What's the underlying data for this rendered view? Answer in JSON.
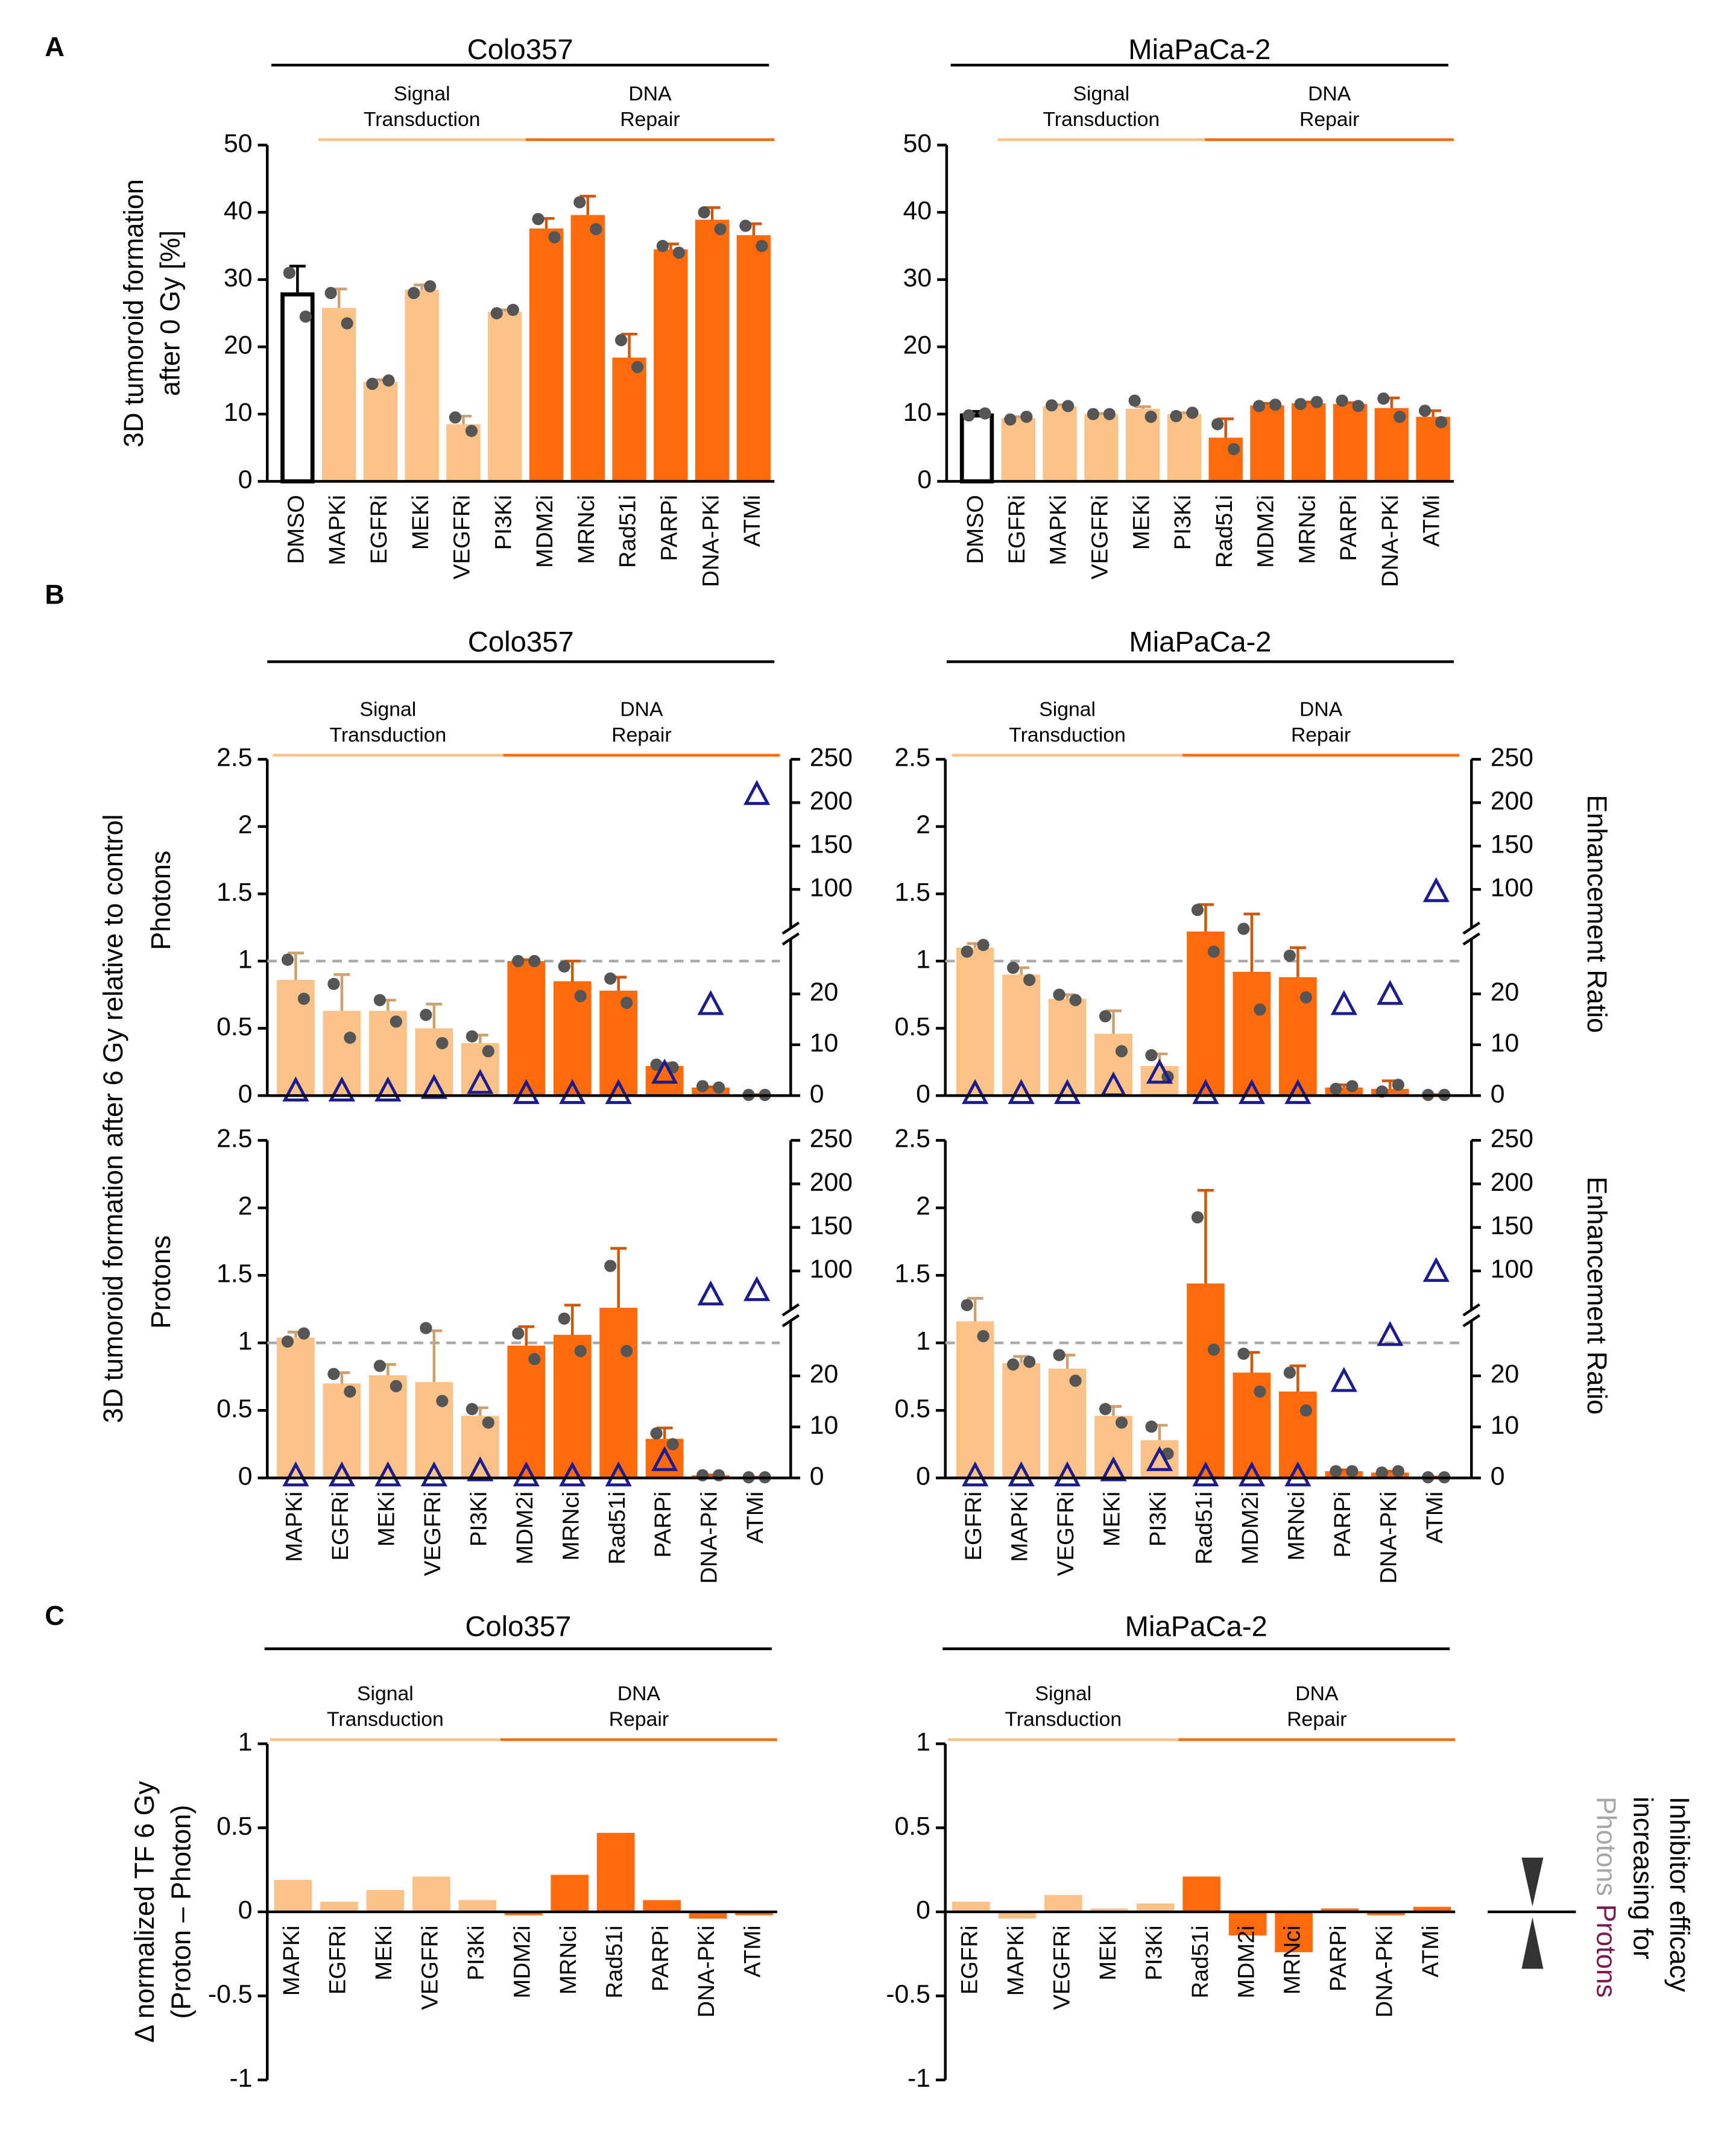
{
  "chart_data": [
    {
      "type": "bar",
      "panel": "A",
      "title": "Colo357",
      "ylabel": [
        "3D tumoroid formation",
        "after 0 Gy [%]"
      ],
      "ylim": [
        0,
        50
      ],
      "yticks": [
        0,
        10,
        20,
        30,
        40,
        50
      ],
      "groups": [
        {
          "color": "#ffffff",
          "edge": "#000000",
          "categories": [
            "DMSO"
          ]
        },
        {
          "name": [
            "Signal",
            "Transduction"
          ],
          "color": "#fbc287",
          "categories": [
            "MAPKi",
            "EGFRi",
            "MEKi",
            "VEGFRi",
            "PI3Ki"
          ]
        },
        {
          "name": [
            "DNA",
            "Repair"
          ],
          "color": "#ff6a0d",
          "categories": [
            "MDM2i",
            "MRNci",
            "Rad51i",
            "PARPi",
            "DNA-PKi",
            "ATMi"
          ]
        }
      ],
      "series": [
        {
          "values": [
            27.8,
            25.8,
            14.8,
            28.5,
            8.5,
            25.2,
            37.6,
            39.6,
            18.4,
            34.5,
            38.9,
            36.6
          ],
          "errors": [
            4.2,
            2.8,
            0.3,
            0.7,
            1.2,
            0.3,
            1.5,
            2.8,
            3.5,
            0.8,
            1.8,
            1.7
          ],
          "points": [
            [
              31,
              24.5
            ],
            [
              28,
              23.5
            ],
            [
              14.5,
              15
            ],
            [
              28,
              29
            ],
            [
              9.5,
              7.5
            ],
            [
              25,
              25.5
            ],
            [
              39,
              36.3
            ],
            [
              41.5,
              37.5
            ],
            [
              21,
              17
            ],
            [
              35,
              34
            ],
            [
              40,
              37.5
            ],
            [
              38,
              35
            ]
          ]
        }
      ]
    },
    {
      "type": "bar",
      "title": "MiaPaCa-2",
      "ylim": [
        0,
        50
      ],
      "yticks": [
        0,
        10,
        20,
        30,
        40,
        50
      ],
      "groups": [
        {
          "color": "#ffffff",
          "edge": "#000000",
          "categories": [
            "DMSO"
          ]
        },
        {
          "name": [
            "Signal",
            "Transduction"
          ],
          "color": "#fbc287",
          "categories": [
            "EGFRi",
            "MAPKi",
            "VEGFRi",
            "MEKi",
            "PI3Ki"
          ]
        },
        {
          "name": [
            "DNA",
            "Repair"
          ],
          "color": "#ff6a0d",
          "categories": [
            "Rad51i",
            "MDM2i",
            "MRNci",
            "PARPi",
            "DNA-PKi",
            "ATMi"
          ]
        }
      ],
      "series": [
        {
          "values": [
            9.8,
            9.4,
            11.2,
            10.0,
            10.8,
            10.0,
            6.5,
            11.3,
            11.6,
            11.5,
            10.9,
            9.6
          ],
          "errors": [
            0.6,
            0.2,
            0.2,
            0.1,
            0.3,
            0.2,
            2.8,
            0.3,
            0.2,
            0.2,
            1.5,
            0.9
          ],
          "points": [
            [
              9.8,
              10.1
            ],
            [
              9.2,
              9.6
            ],
            [
              11.3,
              11.2
            ],
            [
              10,
              10
            ],
            [
              12,
              9.6
            ],
            [
              9.7,
              10.2
            ],
            [
              8.5,
              4.8
            ],
            [
              11.2,
              11.4
            ],
            [
              11.5,
              11.8
            ],
            [
              12,
              11.2
            ],
            [
              12.3,
              9.6
            ],
            [
              10.5,
              8.8
            ]
          ]
        }
      ]
    },
    {
      "type": "bar",
      "panel": "B",
      "title": "Colo357",
      "ylabel": [
        "3D tumoroid formation after 6 Gy relative to control"
      ],
      "ylim": [
        0,
        2.5
      ],
      "yticks": [
        0,
        0.5,
        1,
        1.5,
        2,
        2.5
      ],
      "ref_line": 1,
      "y2lim": [
        0,
        250
      ],
      "y2_break": [
        30,
        60
      ],
      "y2ticks": [
        0,
        10,
        20,
        100,
        150,
        200,
        250
      ],
      "y2color": "#1c1c8f",
      "groups": [
        {
          "name": [
            "Signal",
            "Transduction"
          ],
          "color": "#fbc287",
          "categories": [
            "MAPKi",
            "EGFRi",
            "MEKi",
            "VEGFRi",
            "PI3Ki"
          ]
        },
        {
          "name": [
            "DNA",
            "Repair"
          ],
          "color": "#ff6a0d",
          "categories": [
            "MDM2i",
            "MRNci",
            "Rad51i",
            "PARPi",
            "DNA-PKi",
            "ATMi"
          ]
        }
      ],
      "series": [
        {
          "name": "Photons",
          "name_color": "#a6a6a6",
          "values": [
            0.86,
            0.63,
            0.63,
            0.5,
            0.39,
            1.0,
            0.85,
            0.78,
            0.22,
            0.06,
            0.005
          ],
          "errors": [
            0.2,
            0.27,
            0.08,
            0.18,
            0.06,
            0.01,
            0.15,
            0.1,
            0.02,
            0.005,
            0.002
          ],
          "points": [
            [
              1.01,
              0.72
            ],
            [
              0.83,
              0.43
            ],
            [
              0.71,
              0.55
            ],
            [
              0.6,
              0.39
            ],
            [
              0.44,
              0.33
            ],
            [
              1.0,
              1.0
            ],
            [
              0.96,
              0.74
            ],
            [
              0.87,
              0.69
            ],
            [
              0.23,
              0.21
            ],
            [
              0.07,
              0.06
            ],
            [
              0.005,
              0.005
            ]
          ],
          "enhancement_ratio": [
            1,
            1,
            1,
            1.5,
            2.5,
            0.5,
            0.5,
            0.5,
            4.5,
            18,
            210
          ]
        },
        {
          "name": "Protons",
          "name_color": "#7a1a4f",
          "values": [
            1.04,
            0.7,
            0.76,
            0.71,
            0.46,
            0.98,
            1.06,
            1.26,
            0.29,
            0.02,
            0.005
          ],
          "errors": [
            0.04,
            0.08,
            0.08,
            0.38,
            0.06,
            0.14,
            0.22,
            0.44,
            0.08,
            0.002,
            0.001
          ],
          "points": [
            [
              1.01,
              1.07
            ],
            [
              0.77,
              0.64
            ],
            [
              0.83,
              0.68
            ],
            [
              1.11,
              0.57
            ],
            [
              0.51,
              0.41
            ],
            [
              1.07,
              0.88
            ],
            [
              1.18,
              0.94
            ],
            [
              1.57,
              0.94
            ],
            [
              0.33,
              0.25
            ],
            [
              0.02,
              0.02
            ],
            [
              0.005,
              0.005
            ]
          ],
          "enhancement_ratio": [
            0.5,
            0.5,
            0.5,
            0.5,
            1.5,
            0.5,
            0.5,
            0.5,
            3.5,
            73,
            78
          ]
        }
      ]
    },
    {
      "type": "bar",
      "title": "MiaPaCa-2",
      "ylim": [
        0,
        2.5
      ],
      "yticks": [
        0,
        0.5,
        1,
        1.5,
        2,
        2.5
      ],
      "ref_line": 1,
      "y2lim": [
        0,
        250
      ],
      "y2_break": [
        30,
        60
      ],
      "y2ticks": [
        0,
        10,
        20,
        100,
        150,
        200,
        250
      ],
      "y2color": "#1c1c8f",
      "groups": [
        {
          "name": [
            "Signal",
            "Transduction"
          ],
          "color": "#fbc287",
          "categories": [
            "EGFRi",
            "MAPKi",
            "VEGFRi",
            "MEKi",
            "PI3Ki"
          ]
        },
        {
          "name": [
            "DNA",
            "Repair"
          ],
          "color": "#ff6a0d",
          "categories": [
            "Rad51i",
            "MDM2i",
            "MRNci",
            "PARPi",
            "DNA-PKi",
            "ATMi"
          ]
        }
      ],
      "series": [
        {
          "y2label": "Enhancement Ratio",
          "values": [
            1.1,
            0.9,
            0.72,
            0.46,
            0.22,
            1.22,
            0.92,
            0.88,
            0.06,
            0.05,
            0.005
          ],
          "errors": [
            0.03,
            0.05,
            0.03,
            0.17,
            0.09,
            0.2,
            0.43,
            0.22,
            0.02,
            0.06,
            0.002
          ],
          "points": [
            [
              1.07,
              1.12
            ],
            [
              0.95,
              0.86
            ],
            [
              0.75,
              0.71
            ],
            [
              0.59,
              0.33
            ],
            [
              0.3,
              0.14
            ],
            [
              1.38,
              1.07
            ],
            [
              1.24,
              0.64
            ],
            [
              1.04,
              0.73
            ],
            [
              0.05,
              0.07
            ],
            [
              0.03,
              0.08
            ],
            [
              0.005,
              0.005
            ]
          ],
          "enhancement_ratio": [
            0.5,
            0.5,
            0.5,
            2,
            4.5,
            0.5,
            0.5,
            0.5,
            18,
            20,
            98
          ]
        },
        {
          "y2label": "Enhancement Ratio",
          "values": [
            1.16,
            0.85,
            0.81,
            0.46,
            0.28,
            1.44,
            0.78,
            0.64,
            0.05,
            0.04,
            0.005
          ],
          "errors": [
            0.17,
            0.05,
            0.1,
            0.07,
            0.11,
            0.69,
            0.15,
            0.19,
            0.01,
            0.01,
            0.002
          ],
          "points": [
            [
              1.28,
              1.05
            ],
            [
              0.84,
              0.86
            ],
            [
              0.91,
              0.72
            ],
            [
              0.51,
              0.41
            ],
            [
              0.38,
              0.18
            ],
            [
              1.93,
              0.95
            ],
            [
              0.92,
              0.64
            ],
            [
              0.78,
              0.5
            ],
            [
              0.05,
              0.05
            ],
            [
              0.04,
              0.05
            ],
            [
              0.005,
              0.005
            ]
          ],
          "enhancement_ratio": [
            0.5,
            0.5,
            0.5,
            1.5,
            3.5,
            0.5,
            0.5,
            0.5,
            19,
            28,
            100
          ]
        }
      ]
    },
    {
      "type": "bar",
      "panel": "C",
      "title": "Colo357",
      "ylabel": [
        "Δ normalized TF 6 Gy",
        "(Proton – Photon)"
      ],
      "ylim": [
        -1,
        1
      ],
      "yticks": [
        -1,
        -0.5,
        0,
        0.5,
        1
      ],
      "groups": [
        {
          "name": [
            "Signal",
            "Transduction"
          ],
          "color": "#fbc287",
          "categories": [
            "MAPKi",
            "EGFRi",
            "MEKi",
            "VEGFRi",
            "PI3Ki"
          ]
        },
        {
          "name": [
            "DNA",
            "Repair"
          ],
          "color": "#ff6a0d",
          "categories": [
            "MDM2i",
            "MRNci",
            "Rad51i",
            "PARPi",
            "DNA-PKi",
            "ATMi"
          ]
        }
      ],
      "series": [
        {
          "values": [
            0.19,
            0.06,
            0.13,
            0.21,
            0.07,
            -0.02,
            0.22,
            0.47,
            0.07,
            -0.04,
            -0.02
          ]
        }
      ]
    },
    {
      "type": "bar",
      "title": "MiaPaCa-2",
      "ylim": [
        -1,
        1
      ],
      "yticks": [
        -1,
        -0.5,
        0,
        0.5,
        1
      ],
      "groups": [
        {
          "name": [
            "Signal",
            "Transduction"
          ],
          "color": "#fbc287",
          "categories": [
            "EGFRi",
            "MAPKi",
            "VEGFRi",
            "MEKi",
            "PI3Ki"
          ]
        },
        {
          "name": [
            "DNA",
            "Repair"
          ],
          "color": "#ff6a0d",
          "categories": [
            "Rad51i",
            "MDM2i",
            "MRNci",
            "PARPi",
            "DNA-PKi",
            "ATMi"
          ]
        }
      ],
      "series": [
        {
          "values": [
            0.06,
            -0.04,
            0.1,
            0.02,
            0.05,
            0.21,
            -0.14,
            -0.24,
            0.02,
            -0.02,
            0.03
          ]
        }
      ],
      "note": {
        "lines": [
          "Inhibitor efficacy",
          "increasing for"
        ],
        "photons": "Photons",
        "protons": "Protons",
        "photons_color": "#a6a6a6",
        "protons_color": "#7a1a4f"
      }
    }
  ]
}
